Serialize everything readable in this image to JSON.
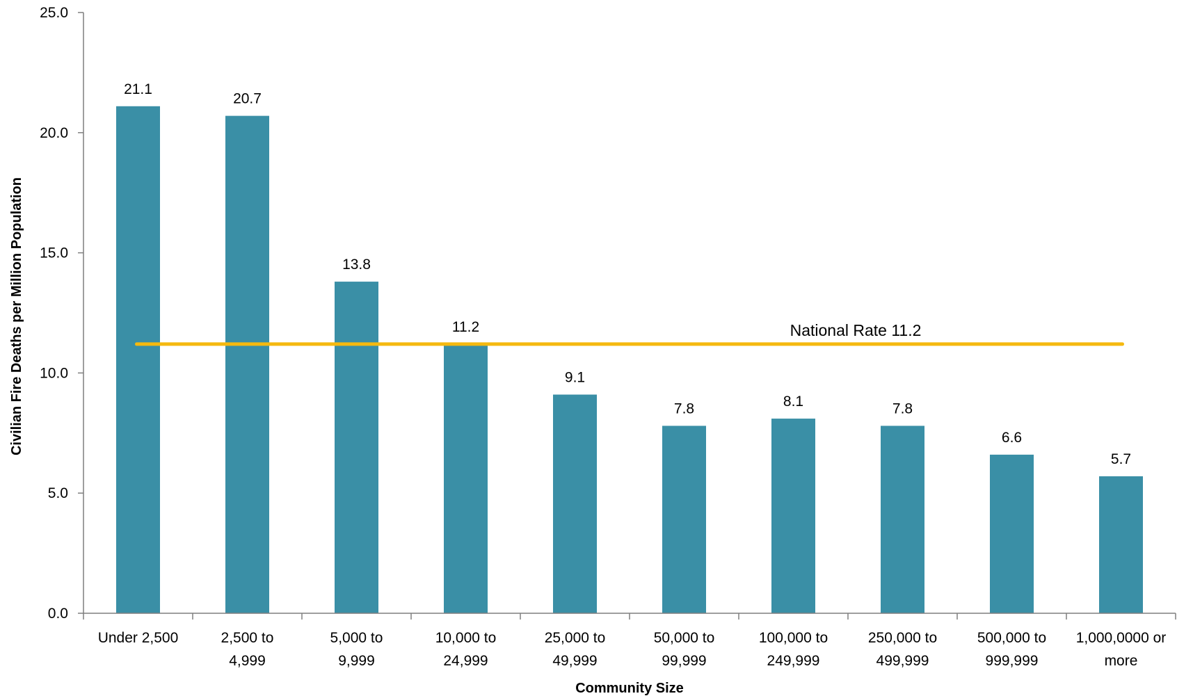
{
  "chart_data": {
    "type": "bar",
    "categories": [
      [
        "Under 2,500"
      ],
      [
        "2,500 to",
        "4,999"
      ],
      [
        "5,000 to",
        "9,999"
      ],
      [
        "10,000 to",
        "24,999"
      ],
      [
        "25,000 to",
        "49,999"
      ],
      [
        "50,000 to",
        "99,999"
      ],
      [
        "100,000 to",
        "249,999"
      ],
      [
        "250,000 to",
        "499,999"
      ],
      [
        "500,000 to",
        "999,999"
      ],
      [
        "1,000,0000 or",
        "more"
      ]
    ],
    "values": [
      21.1,
      20.7,
      13.8,
      11.2,
      9.1,
      7.8,
      8.1,
      7.8,
      6.6,
      5.7
    ],
    "data_labels": [
      "21.1",
      "20.7",
      "13.8",
      "11.2",
      "9.1",
      "7.8",
      "8.1",
      "7.8",
      "6.6",
      "5.7"
    ],
    "xlabel": "Community Size",
    "ylabel": "Civilian Fire Deaths per Million Population",
    "ylim": [
      0,
      25
    ],
    "y_ticks": [
      0,
      5,
      10,
      15,
      20,
      25
    ],
    "y_tick_labels": [
      "0.0",
      "5.0",
      "10.0",
      "15.0",
      "20.0",
      "25.0"
    ],
    "grid": false,
    "legend": "none",
    "reference_line": {
      "value": 11.2,
      "label": "National Rate 11.2"
    },
    "colors": {
      "bar": "#3a8fa6",
      "reference_line": "#f5b90f",
      "axis": "#7f7f7f"
    }
  }
}
